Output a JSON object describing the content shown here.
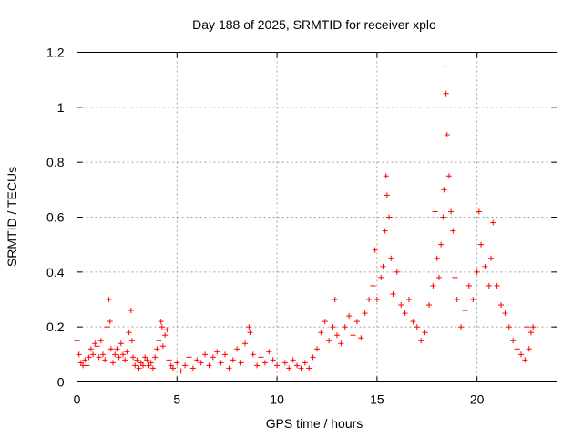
{
  "chart_data": {
    "type": "scatter",
    "title": "Day 188 of 2025, SRMTID for receiver xplo",
    "xlabel": "GPS time / hours",
    "ylabel": "SRMTID / TECUs",
    "xlim": [
      0,
      24
    ],
    "ylim": [
      0,
      1.2
    ],
    "x_ticks": [
      0,
      5,
      10,
      15,
      20
    ],
    "y_ticks": [
      0,
      0.2,
      0.4,
      0.6,
      0.8,
      1,
      1.2
    ],
    "x_tick_labels": [
      "0",
      "5",
      "10",
      "15",
      "20"
    ],
    "y_tick_labels": [
      "0",
      "0.2",
      "0.4",
      "0.6",
      "0.8",
      "1",
      "1.2"
    ],
    "grid": true,
    "marker": "+",
    "color": "#ff0000",
    "series": [
      {
        "name": "SRMTID",
        "x": [
          0.0,
          0.1,
          0.2,
          0.3,
          0.4,
          0.5,
          0.6,
          0.7,
          0.8,
          0.9,
          1.0,
          1.1,
          1.2,
          1.3,
          1.4,
          1.5,
          1.6,
          1.65,
          1.7,
          1.8,
          1.9,
          2.0,
          2.1,
          2.2,
          2.3,
          2.4,
          2.5,
          2.6,
          2.7,
          2.75,
          2.8,
          2.9,
          3.0,
          3.1,
          3.2,
          3.3,
          3.4,
          3.5,
          3.6,
          3.7,
          3.8,
          3.9,
          4.0,
          4.1,
          4.2,
          4.25,
          4.3,
          4.4,
          4.5,
          4.6,
          4.7,
          4.8,
          5.0,
          5.2,
          5.4,
          5.6,
          5.8,
          6.0,
          6.2,
          6.4,
          6.6,
          6.8,
          7.0,
          7.2,
          7.4,
          7.6,
          7.8,
          8.0,
          8.2,
          8.4,
          8.6,
          8.65,
          8.8,
          9.0,
          9.2,
          9.4,
          9.6,
          9.8,
          10.0,
          10.2,
          10.4,
          10.6,
          10.8,
          11.0,
          11.2,
          11.4,
          11.6,
          11.8,
          12.0,
          12.2,
          12.4,
          12.6,
          12.8,
          12.9,
          13.0,
          13.2,
          13.4,
          13.6,
          13.8,
          14.0,
          14.2,
          14.4,
          14.6,
          14.8,
          14.9,
          15.0,
          15.2,
          15.3,
          15.4,
          15.45,
          15.5,
          15.6,
          15.7,
          15.8,
          16.0,
          16.2,
          16.4,
          16.6,
          16.8,
          17.0,
          17.2,
          17.4,
          17.6,
          17.8,
          17.9,
          18.0,
          18.1,
          18.2,
          18.3,
          18.35,
          18.4,
          18.45,
          18.5,
          18.6,
          18.7,
          18.8,
          18.9,
          19.0,
          19.2,
          19.4,
          19.6,
          19.8,
          20.0,
          20.1,
          20.2,
          20.4,
          20.6,
          20.7,
          20.8,
          21.0,
          21.2,
          21.4,
          21.6,
          21.8,
          22.0,
          22.2,
          22.4,
          22.5,
          22.6,
          22.7,
          22.8
        ],
        "y": [
          0.15,
          0.1,
          0.07,
          0.06,
          0.08,
          0.06,
          0.09,
          0.12,
          0.1,
          0.14,
          0.13,
          0.09,
          0.15,
          0.1,
          0.08,
          0.2,
          0.3,
          0.22,
          0.12,
          0.07,
          0.1,
          0.12,
          0.09,
          0.14,
          0.1,
          0.08,
          0.11,
          0.18,
          0.26,
          0.15,
          0.09,
          0.06,
          0.08,
          0.05,
          0.07,
          0.06,
          0.09,
          0.08,
          0.06,
          0.07,
          0.05,
          0.09,
          0.12,
          0.15,
          0.22,
          0.2,
          0.13,
          0.17,
          0.19,
          0.08,
          0.06,
          0.05,
          0.07,
          0.04,
          0.06,
          0.09,
          0.05,
          0.08,
          0.07,
          0.1,
          0.06,
          0.09,
          0.11,
          0.07,
          0.1,
          0.05,
          0.08,
          0.12,
          0.07,
          0.14,
          0.2,
          0.18,
          0.1,
          0.06,
          0.09,
          0.07,
          0.11,
          0.08,
          0.06,
          0.04,
          0.07,
          0.05,
          0.08,
          0.06,
          0.05,
          0.07,
          0.05,
          0.09,
          0.12,
          0.18,
          0.22,
          0.15,
          0.2,
          0.3,
          0.17,
          0.14,
          0.2,
          0.24,
          0.17,
          0.22,
          0.16,
          0.25,
          0.3,
          0.35,
          0.48,
          0.3,
          0.38,
          0.42,
          0.55,
          0.75,
          0.68,
          0.6,
          0.45,
          0.32,
          0.4,
          0.28,
          0.25,
          0.3,
          0.22,
          0.2,
          0.15,
          0.18,
          0.28,
          0.35,
          0.62,
          0.45,
          0.38,
          0.5,
          0.6,
          0.7,
          1.15,
          1.05,
          0.9,
          0.75,
          0.62,
          0.55,
          0.38,
          0.3,
          0.2,
          0.26,
          0.35,
          0.3,
          0.4,
          0.62,
          0.5,
          0.42,
          0.35,
          0.45,
          0.58,
          0.35,
          0.28,
          0.25,
          0.2,
          0.15,
          0.12,
          0.1,
          0.08,
          0.2,
          0.12,
          0.18,
          0.2
        ]
      }
    ]
  }
}
